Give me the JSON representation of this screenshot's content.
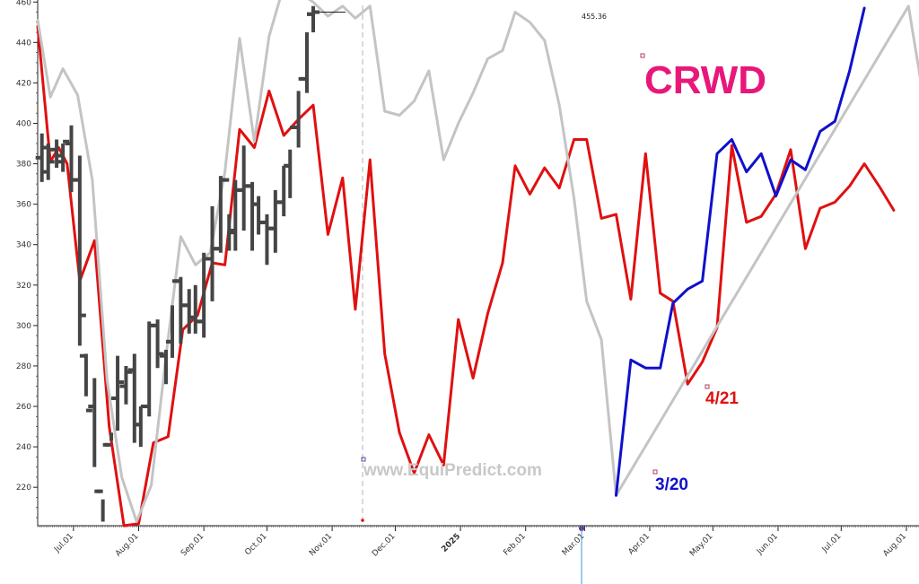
{
  "ticker": "CRWD",
  "watermark": "www.EquiPredict.com",
  "colors": {
    "price": "#454545",
    "forecast_red": "#e01010",
    "forecast_gray": "#c4c4c4",
    "forecast_blue": "#1010cc",
    "ticker": "#e8177a",
    "axis": "#222222",
    "year_label": "#cc0000"
  },
  "chart_data": {
    "type": "line",
    "y_ticks": [
      220,
      240,
      260,
      280,
      300,
      320,
      340,
      360,
      380,
      400,
      420,
      440,
      460
    ],
    "ylim": [
      201,
      461
    ],
    "x_ticks": [
      {
        "label": "Jul.01",
        "x": 3
      },
      {
        "label": "Aug.01",
        "x": 34
      },
      {
        "label": "Sep.01",
        "x": 65
      },
      {
        "label": "Oct.01",
        "x": 95
      },
      {
        "label": "Nov.01",
        "x": 126
      },
      {
        "label": "Dec.01",
        "x": 156
      },
      {
        "label": "2025",
        "x": 187,
        "highlight": true
      },
      {
        "label": "Feb.01",
        "x": 218
      },
      {
        "label": "Mar.01",
        "x": 246
      },
      {
        "label": "Apr.01",
        "x": 277
      },
      {
        "label": "May.01",
        "x": 307
      },
      {
        "label": "Jun.01",
        "x": 338
      },
      {
        "label": "Jul.01",
        "x": 368
      },
      {
        "label": "Aug.01",
        "x": 399
      }
    ],
    "xlim": [
      -14,
      405
    ],
    "last_price_label": "455.36",
    "annotations": [
      {
        "label": "3/20",
        "color": "#1010cc",
        "x": 291,
        "y": 219
      },
      {
        "label": "4/21",
        "color": "#e01010",
        "x": 323,
        "y": 256
      }
    ],
    "series": [
      {
        "color": "#e01010",
        "style": "line",
        "points": [
          [
            -14,
            448
          ],
          [
            -8,
            381
          ],
          [
            -4,
            388
          ],
          [
            0,
            380
          ],
          [
            6,
            322
          ],
          [
            13,
            342
          ],
          [
            20,
            250
          ],
          [
            27,
            201
          ],
          [
            34,
            202
          ],
          [
            41,
            242
          ],
          [
            48,
            245
          ],
          [
            55,
            298
          ],
          [
            62,
            305
          ],
          [
            69,
            331
          ],
          [
            75,
            330
          ],
          [
            82,
            397
          ],
          [
            89,
            388
          ],
          [
            96,
            416
          ],
          [
            103,
            394
          ],
          [
            110,
            402
          ],
          [
            117,
            409
          ],
          [
            124,
            345
          ],
          [
            131,
            373
          ],
          [
            137,
            308
          ],
          [
            144,
            382
          ],
          [
            151,
            286
          ],
          [
            158,
            247
          ],
          [
            165,
            227
          ],
          [
            172,
            246
          ],
          [
            179,
            231
          ],
          [
            186,
            303
          ],
          [
            193,
            274
          ],
          [
            200,
            306
          ],
          [
            207,
            331
          ],
          [
            213,
            379
          ],
          [
            220,
            365
          ],
          [
            227,
            378
          ],
          [
            234,
            368
          ],
          [
            241,
            392
          ],
          [
            247,
            392
          ],
          [
            254,
            353
          ],
          [
            261,
            355
          ],
          [
            268,
            313
          ],
          [
            275,
            385
          ],
          [
            282,
            316
          ],
          [
            288,
            312
          ],
          [
            295,
            271
          ],
          [
            302,
            282
          ],
          [
            309,
            299
          ],
          [
            316,
            389
          ],
          [
            323,
            351
          ],
          [
            330,
            354
          ],
          [
            337,
            365
          ],
          [
            344,
            387
          ],
          [
            351,
            338
          ],
          [
            358,
            358
          ],
          [
            365,
            361
          ],
          [
            372,
            369
          ],
          [
            379,
            380
          ],
          [
            386,
            369
          ],
          [
            393,
            357
          ]
        ]
      },
      {
        "color": "#c4c4c4",
        "style": "line",
        "points": [
          [
            -14,
            451
          ],
          [
            -8,
            413
          ],
          [
            -2,
            427
          ],
          [
            5,
            414
          ],
          [
            12,
            372
          ],
          [
            19,
            273
          ],
          [
            26,
            225
          ],
          [
            33,
            203
          ],
          [
            40,
            221
          ],
          [
            47,
            285
          ],
          [
            54,
            344
          ],
          [
            61,
            330
          ],
          [
            68,
            336
          ],
          [
            75,
            376
          ],
          [
            82,
            442
          ],
          [
            89,
            391
          ],
          [
            96,
            443
          ],
          [
            103,
            468
          ],
          [
            110,
            465
          ],
          [
            117,
            460
          ],
          [
            124,
            453
          ],
          [
            131,
            458
          ],
          [
            137,
            452
          ],
          [
            144,
            458
          ],
          [
            151,
            406
          ],
          [
            158,
            404
          ],
          [
            165,
            411
          ],
          [
            172,
            426
          ],
          [
            179,
            382
          ],
          [
            186,
            400
          ],
          [
            193,
            415
          ],
          [
            200,
            432
          ],
          [
            207,
            436
          ],
          [
            213,
            455
          ],
          [
            220,
            450
          ],
          [
            227,
            441
          ],
          [
            234,
            409
          ],
          [
            241,
            363
          ],
          [
            247,
            312
          ],
          [
            254,
            293
          ],
          [
            261,
            216
          ],
          [
            400,
            458
          ],
          [
            406,
            420
          ]
        ]
      },
      {
        "color": "#1010cc",
        "style": "line",
        "points": [
          [
            261,
            216
          ],
          [
            268,
            283
          ],
          [
            275,
            279
          ],
          [
            282,
            279
          ],
          [
            288,
            311
          ],
          [
            295,
            318
          ],
          [
            302,
            322
          ],
          [
            309,
            385
          ],
          [
            316,
            392
          ],
          [
            323,
            376
          ],
          [
            330,
            385
          ],
          [
            337,
            364
          ],
          [
            344,
            382
          ],
          [
            351,
            377
          ],
          [
            358,
            396
          ],
          [
            365,
            401
          ],
          [
            372,
            426
          ],
          [
            379,
            457
          ]
        ]
      },
      {
        "color": "#454545",
        "style": "ohlc",
        "bars": [
          [
            -12,
            383,
            395,
            371,
            388
          ],
          [
            -9,
            376,
            390,
            372,
            381
          ],
          [
            -5,
            387,
            392,
            378,
            381
          ],
          [
            -2,
            384,
            390,
            376,
            391
          ],
          [
            2,
            390,
            399,
            366,
            372
          ],
          [
            6,
            372,
            384,
            290,
            305
          ],
          [
            9,
            285,
            286,
            265,
            258
          ],
          [
            13,
            260,
            274,
            230,
            218
          ],
          [
            17,
            218,
            214,
            203,
            241
          ],
          [
            21,
            241,
            247,
            243,
            264
          ],
          [
            24,
            264,
            285,
            248,
            272
          ],
          [
            28,
            270,
            280,
            261,
            277
          ],
          [
            32,
            278,
            286,
            242,
            251
          ],
          [
            35,
            251,
            260,
            240,
            260
          ],
          [
            39,
            260,
            302,
            255,
            300
          ],
          [
            43,
            300,
            303,
            279,
            286
          ],
          [
            47,
            285,
            288,
            271,
            292
          ],
          [
            50,
            292,
            310,
            284,
            322
          ],
          [
            54,
            322,
            324,
            291,
            310
          ],
          [
            58,
            310,
            318,
            296,
            304
          ],
          [
            61,
            304,
            320,
            296,
            302
          ],
          [
            65,
            302,
            336,
            294,
            333
          ],
          [
            69,
            333,
            359,
            312,
            338
          ],
          [
            73,
            338,
            374,
            336,
            372
          ],
          [
            77,
            372,
            355,
            337,
            347
          ],
          [
            80,
            346,
            372,
            337,
            367
          ],
          [
            84,
            367,
            389,
            347,
            369
          ],
          [
            88,
            369,
            371,
            337,
            360
          ],
          [
            91,
            360,
            364,
            345,
            351
          ],
          [
            95,
            351,
            355,
            330,
            348
          ],
          [
            99,
            348,
            367,
            336,
            361
          ],
          [
            103,
            361,
            379,
            354,
            379
          ],
          [
            106,
            379,
            387,
            363,
            398
          ],
          [
            110,
            398,
            416,
            388,
            422
          ],
          [
            114,
            422,
            445,
            415,
            454
          ],
          [
            117,
            454,
            458,
            445,
            455
          ]
        ]
      }
    ]
  }
}
